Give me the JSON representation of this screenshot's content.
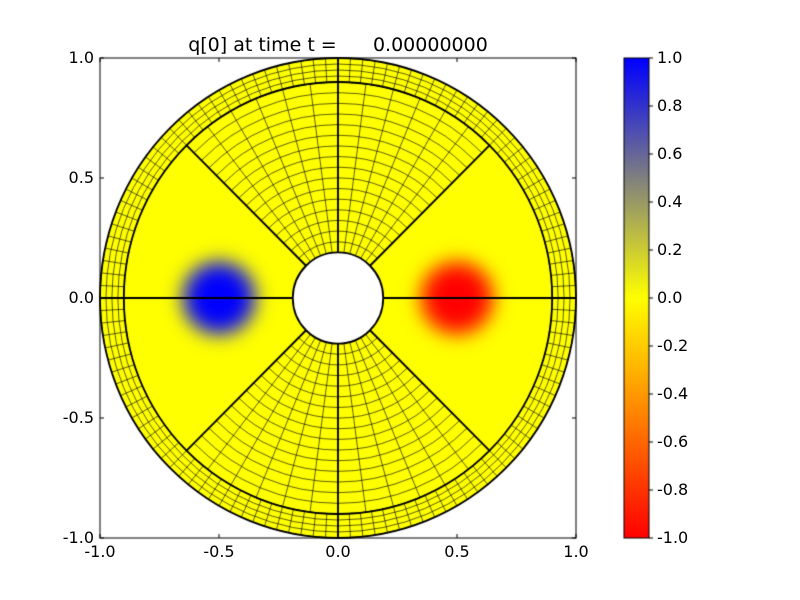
{
  "chart_data": {
    "type": "heatmap",
    "title": "q[0] at time t =      0.00000000",
    "quantity": "q[0]",
    "time": "0.00000000",
    "xlim": [
      -1.0,
      1.0
    ],
    "ylim": [
      -1.0,
      1.0
    ],
    "x_tick_labels": [
      "-1.0",
      "-0.5",
      "0.0",
      "0.5",
      "1.0"
    ],
    "x_tick_values": [
      -1.0,
      -0.5,
      0.0,
      0.5,
      1.0
    ],
    "y_tick_labels": [
      "-1.0",
      "-0.5",
      "0.0",
      "0.5",
      "1.0"
    ],
    "y_tick_values": [
      -1.0,
      -0.5,
      0.0,
      0.5,
      1.0
    ],
    "grid": false,
    "legend": "none",
    "colorbar": {
      "position": "right",
      "vmin": -1.0,
      "vmax": 1.0,
      "tick_labels": [
        "1.0",
        "0.8",
        "0.6",
        "0.4",
        "0.2",
        "0.0",
        "-0.2",
        "-0.4",
        "-0.6",
        "-0.8",
        "-1.0"
      ],
      "tick_values": [
        1.0,
        0.8,
        0.6,
        0.4,
        0.2,
        0.0,
        -0.2,
        -0.4,
        -0.6,
        -0.8,
        -1.0
      ],
      "colormap_anchors": [
        {
          "value": -1.0,
          "color": "#ff0000"
        },
        {
          "value": 0.0,
          "color": "#ffff00"
        },
        {
          "value": 1.0,
          "color": "#0000ff"
        }
      ]
    },
    "domain": {
      "shape": "annulus",
      "center": [
        0.0,
        0.0
      ],
      "inner_radius": 0.19,
      "ring_inner_radius": 0.9,
      "outer_radius": 1.0,
      "wedge_boundary_angles_deg": [
        45,
        135,
        225,
        315
      ]
    },
    "field": {
      "background_value": 0.0,
      "blobs": [
        {
          "center_x": -0.5,
          "center_y": 0.0,
          "peak_value": 1.0,
          "radius": 0.16
        },
        {
          "center_x": 0.5,
          "center_y": 0.0,
          "peak_value": -1.0,
          "radius": 0.16
        }
      ]
    },
    "mesh": {
      "line_color": "#000000",
      "wedge_angular_cells": 12,
      "wedge_radial_cells": 16,
      "ring_angular_cells": 120,
      "ring_radial_cells": 4,
      "meshed_wedges": [
        "top",
        "bottom"
      ],
      "smooth_wedges": [
        "left",
        "right"
      ]
    },
    "colors": {
      "background_fill": "#ffff00",
      "positive_peak": "#0000ff",
      "negative_peak": "#ff0000",
      "frame": "#000000",
      "figure_background": "#ffffff"
    }
  }
}
